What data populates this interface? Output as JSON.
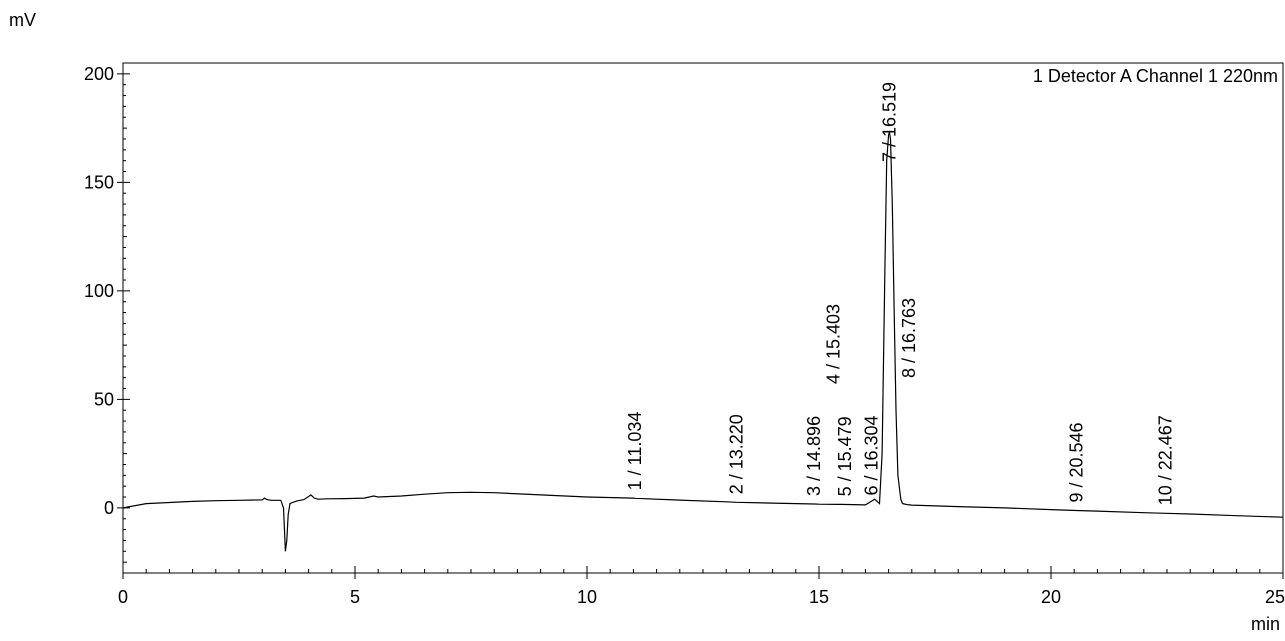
{
  "chart_data": {
    "type": "line",
    "title": "",
    "xlabel": "min",
    "ylabel": "mV",
    "xlim": [
      0,
      25
    ],
    "ylim": [
      -30,
      205
    ],
    "x_ticks": [
      0,
      5,
      10,
      15,
      20,
      25
    ],
    "y_ticks": [
      0,
      50,
      100,
      150,
      200
    ],
    "grid": false,
    "legend": "top-right",
    "series": [
      {
        "name": "1 Detector A Channel 1 220nm",
        "color": "#000000",
        "x": [
          0,
          0.5,
          1,
          1.5,
          2,
          2.5,
          3,
          3.05,
          3.1,
          3.2,
          3.4,
          3.46,
          3.5,
          3.53,
          3.56,
          3.6,
          3.65,
          3.75,
          3.9,
          4.05,
          4.12,
          4.2,
          4.4,
          4.8,
          5.2,
          5.4,
          5.5,
          6,
          6.5,
          7,
          7.5,
          8,
          9,
          10,
          11,
          11.034,
          12,
          13,
          13.22,
          14,
          14.896,
          15,
          15.403,
          15.479,
          16,
          16.2,
          16.304,
          16.36,
          16.42,
          16.46,
          16.5,
          16.519,
          16.54,
          16.58,
          16.62,
          16.66,
          16.7,
          16.763,
          16.8,
          16.9,
          17,
          18,
          19,
          20,
          20.546,
          21,
          22,
          22.467,
          23,
          24,
          25
        ],
        "y": [
          0,
          2,
          2.5,
          3,
          3.3,
          3.5,
          3.7,
          4.5,
          3.8,
          3.5,
          3.5,
          0,
          -20,
          -15,
          -3,
          2,
          2.5,
          3.2,
          3.8,
          6,
          4.5,
          4,
          4.2,
          4.3,
          4.5,
          5.5,
          5,
          5.5,
          6.3,
          7,
          7.2,
          7,
          6,
          5,
          4.5,
          4.4,
          3.6,
          2.8,
          2.6,
          2.2,
          1.8,
          1.7,
          1.6,
          1.6,
          1.4,
          4,
          2,
          25,
          110,
          160,
          172,
          173,
          170,
          140,
          90,
          45,
          15,
          4,
          2,
          1.5,
          1.3,
          0.6,
          0,
          -0.8,
          -1.2,
          -1.5,
          -2.2,
          -2.5,
          -2.8,
          -3.6,
          -4.3
        ]
      }
    ],
    "peak_labels": [
      {
        "x": 11.034,
        "label": "1 / 11.034"
      },
      {
        "x": 13.22,
        "label": "2 / 13.220"
      },
      {
        "x": 14.896,
        "label": "3 / 14.896"
      },
      {
        "x": 15.403,
        "label": "4 / 15.403"
      },
      {
        "x": 15.479,
        "label": "5 / 15.479"
      },
      {
        "x": 16.304,
        "label": "6 / 16.304"
      },
      {
        "x": 16.519,
        "label": "7 / 16.519"
      },
      {
        "x": 16.763,
        "label": "8 / 16.763"
      },
      {
        "x": 20.546,
        "label": "9 / 20.546"
      },
      {
        "x": 22.467,
        "label": "10 / 22.467"
      }
    ]
  }
}
